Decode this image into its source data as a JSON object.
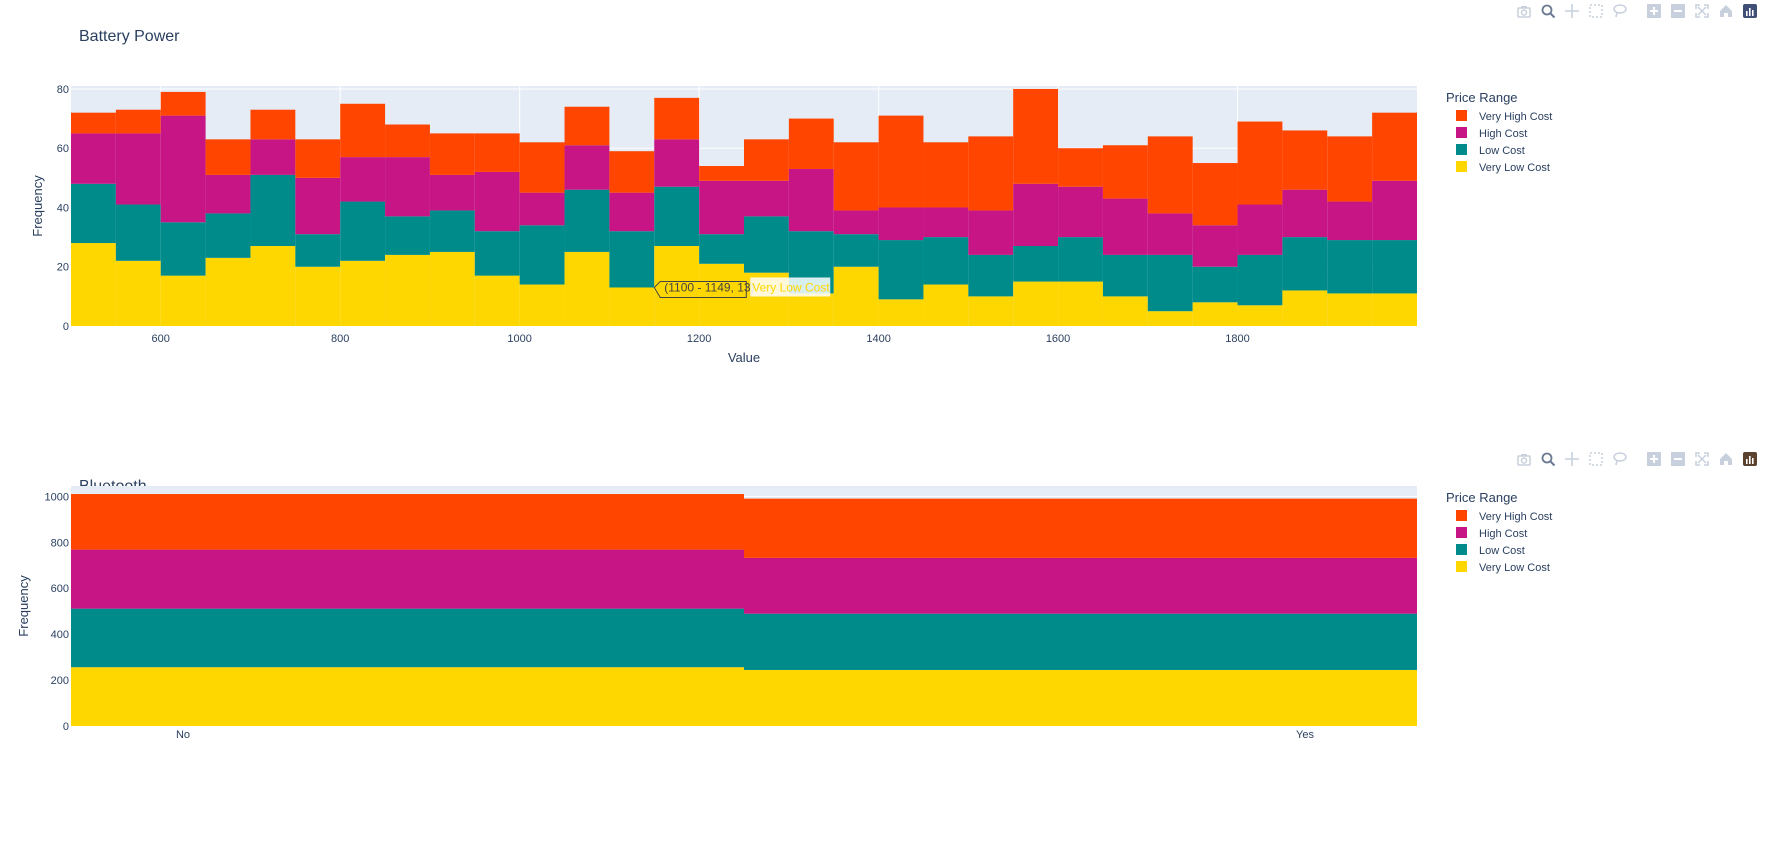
{
  "colors": {
    "very_high": "#FF4500",
    "high": "#C71585",
    "low": "#008B8B",
    "very_low": "#FFD700",
    "plot_bg": "#E5ECF6",
    "grid": "#FFFFFF",
    "text": "#2A3F5F"
  },
  "modebar_icons": [
    "camera-icon",
    "zoom-icon",
    "pan-icon",
    "box-select-icon",
    "lasso-icon",
    "zoom-in-icon",
    "zoom-out-icon",
    "autoscale-icon",
    "reset-axes-icon",
    "plotly-logo-icon"
  ],
  "chart_data": [
    {
      "type": "bar",
      "barmode": "stack",
      "title": "Battery Power",
      "xlabel": "Value",
      "ylabel": "Frequency",
      "legend_title": "Price Range",
      "legend_position": "right",
      "bin_start": 500,
      "bin_width": 50,
      "xlim": [
        500,
        2000
      ],
      "ylim": [
        0,
        81
      ],
      "xticks": [
        600,
        800,
        1000,
        1200,
        1400,
        1600,
        1800
      ],
      "yticks": [
        0,
        20,
        40,
        60,
        80
      ],
      "series": [
        {
          "name": "Very Low Cost",
          "values": [
            28,
            22,
            17,
            23,
            27,
            20,
            22,
            24,
            25,
            17,
            14,
            25,
            13,
            27,
            21,
            18,
            11,
            20,
            9,
            14,
            10,
            15,
            15,
            10,
            5,
            8,
            7,
            12,
            11,
            11
          ]
        },
        {
          "name": "Low Cost",
          "values": [
            20,
            19,
            18,
            15,
            24,
            11,
            20,
            13,
            14,
            15,
            20,
            21,
            19,
            20,
            10,
            19,
            21,
            11,
            20,
            16,
            14,
            12,
            15,
            14,
            19,
            12,
            17,
            18,
            18,
            18
          ]
        },
        {
          "name": "High Cost",
          "values": [
            17,
            24,
            36,
            13,
            12,
            19,
            15,
            20,
            12,
            20,
            11,
            15,
            13,
            16,
            18,
            12,
            21,
            8,
            11,
            10,
            15,
            21,
            17,
            19,
            14,
            14,
            17,
            16,
            13,
            20
          ]
        },
        {
          "name": "Very High Cost",
          "values": [
            7,
            8,
            8,
            12,
            10,
            13,
            18,
            11,
            14,
            13,
            17,
            13,
            14,
            14,
            5,
            14,
            17,
            23,
            31,
            22,
            25,
            32,
            13,
            18,
            26,
            21,
            28,
            20,
            22,
            23
          ]
        }
      ],
      "tooltip": {
        "range": "(1100 - 1149, 13)",
        "series": "Very Low Cost",
        "bin_index": 12
      }
    },
    {
      "type": "bar",
      "barmode": "stack",
      "title": "Bluetooth",
      "xlabel": "",
      "ylabel": "Frequency",
      "legend_title": "Price Range",
      "legend_position": "right",
      "categories": [
        "No",
        "Yes"
      ],
      "ylim": [
        0,
        1045
      ],
      "yticks": [
        0,
        200,
        400,
        600,
        800,
        1000
      ],
      "series": [
        {
          "name": "Very Low Cost",
          "values": [
            256,
            244
          ]
        },
        {
          "name": "Low Cost",
          "values": [
            255,
            245
          ]
        },
        {
          "name": "High Cost",
          "values": [
            257,
            243
          ]
        },
        {
          "name": "Very High Cost",
          "values": [
            242,
            258
          ]
        }
      ]
    }
  ]
}
